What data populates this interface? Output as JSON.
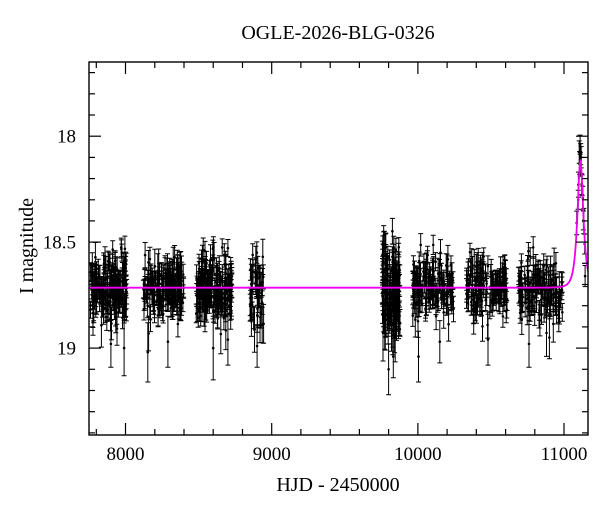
{
  "figure": {
    "title": "OGLE-2026-BLG-0326",
    "xlabel": "HJD - 2450000",
    "ylabel": "I magnitude"
  },
  "chart_data": {
    "type": "scatter",
    "title": "OGLE-2026-BLG-0326",
    "xlabel": "HJD - 2450000",
    "ylabel": "I magnitude",
    "grid": false,
    "legend": false,
    "x_axis": {
      "min": 7750,
      "max": 11164,
      "major_ticks": [
        8000,
        9000,
        10000,
        11000
      ],
      "major_tick_labels": [
        "8000",
        "9000",
        "10000",
        "11000"
      ],
      "minor_tick_step": 200
    },
    "y_axis": {
      "min": 17.65,
      "max": 19.41,
      "inverted_magnitude_axis": true,
      "major_ticks": [
        18,
        18.5,
        19
      ],
      "major_tick_labels": [
        "18",
        "18.5",
        "19"
      ],
      "minor_tick_step": 0.1
    },
    "colors": {
      "points": "#000000",
      "error_bars": "#000000",
      "model_curve": "#ee00ee",
      "frame": "#000000",
      "background": "#ffffff"
    },
    "baseline_mag": 18.715,
    "model": {
      "type": "paczynski_microlensing",
      "I0": 18.715,
      "t0": 11112,
      "tE": 30,
      "u0": 0.67,
      "peak_mag": 18.13
    },
    "seasons": [
      {
        "t_start": 7754,
        "t_end": 8008,
        "n": 170,
        "mean_mag": 18.72,
        "sigma": 0.075,
        "err_base": 0.04,
        "err_spread": 0.05,
        "outliers": [
          [
            7990,
            19.0,
            0.13
          ],
          [
            7900,
            18.98,
            0.11
          ]
        ]
      },
      {
        "t_start": 8122,
        "t_end": 8398,
        "n": 170,
        "mean_mag": 18.72,
        "sigma": 0.075,
        "err_base": 0.04,
        "err_spread": 0.05,
        "outliers": [
          [
            8152,
            19.02,
            0.14
          ],
          [
            8290,
            18.97,
            0.12
          ]
        ]
      },
      {
        "t_start": 8482,
        "t_end": 8728,
        "n": 180,
        "mean_mag": 18.72,
        "sigma": 0.075,
        "err_base": 0.04,
        "err_spread": 0.05,
        "outliers": [
          [
            8600,
            19.0,
            0.15
          ],
          [
            8700,
            18.96,
            0.12
          ]
        ]
      },
      {
        "t_start": 8852,
        "t_end": 8948,
        "n": 45,
        "mean_mag": 18.75,
        "sigma": 0.095,
        "err_base": 0.05,
        "err_spread": 0.06,
        "outliers": [
          [
            8900,
            18.99,
            0.1
          ]
        ]
      },
      {
        "t_start": 9756,
        "t_end": 9878,
        "n": 150,
        "mean_mag": 18.74,
        "sigma": 0.115,
        "err_base": 0.045,
        "err_spread": 0.06,
        "outliers": [
          [
            9800,
            19.1,
            0.12
          ],
          [
            9832,
            19.04,
            0.1
          ]
        ]
      },
      {
        "t_start": 9964,
        "t_end": 10252,
        "n": 140,
        "mean_mag": 18.7,
        "sigma": 0.072,
        "err_base": 0.04,
        "err_spread": 0.05,
        "outliers": [
          [
            10004,
            19.04,
            0.12
          ],
          [
            10150,
            18.97,
            0.1
          ]
        ]
      },
      {
        "t_start": 10330,
        "t_end": 10612,
        "n": 130,
        "mean_mag": 18.71,
        "sigma": 0.075,
        "err_base": 0.04,
        "err_spread": 0.05,
        "outliers": [
          [
            10480,
            18.96,
            0.12
          ]
        ]
      },
      {
        "t_start": 10688,
        "t_end": 10992,
        "n": 140,
        "mean_mag": 18.72,
        "sigma": 0.075,
        "err_base": 0.04,
        "err_spread": 0.05,
        "outliers": [
          [
            10760,
            18.98,
            0.11
          ],
          [
            10900,
            18.95,
            0.1
          ]
        ]
      }
    ],
    "event_points": {
      "t_start": 11090,
      "t_end": 11142,
      "n": 13,
      "sigma": 0.035,
      "err_base": 0.042,
      "err_spread": 0.02,
      "brightest_mag": 18.04,
      "forced": [
        [
          11110,
          18.04,
          0.045
        ],
        [
          11114,
          18.085,
          0.05
        ],
        [
          11144,
          18.66,
          0.05
        ]
      ]
    }
  }
}
